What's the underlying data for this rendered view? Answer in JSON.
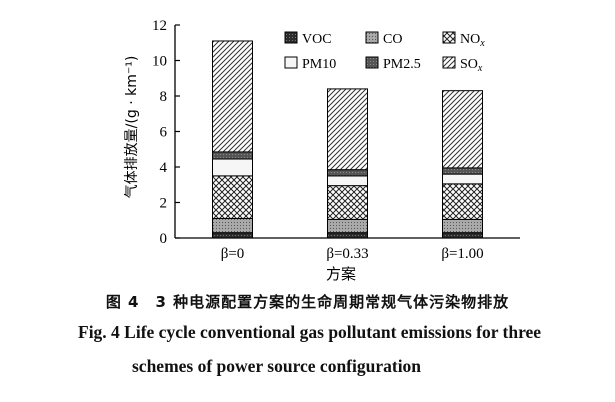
{
  "chart_data": {
    "type": "bar",
    "stacked": true,
    "categories": [
      "β=0",
      "β=0.33",
      "β=1.00"
    ],
    "xlabel": "方案",
    "ylabel": "气体排放量/(g · km⁻¹)",
    "ylim": [
      0,
      12
    ],
    "yticks": [
      0,
      2,
      4,
      6,
      8,
      10,
      12
    ],
    "legend_position": "top-left",
    "series": [
      {
        "name": "VOC",
        "values": [
          0.3,
          0.3,
          0.3
        ],
        "pattern": "dark"
      },
      {
        "name": "CO",
        "values": [
          0.8,
          0.75,
          0.75
        ],
        "pattern": "grey-dots"
      },
      {
        "name": "NOx",
        "values": [
          2.4,
          1.9,
          2.0
        ],
        "pattern": "crosshatch"
      },
      {
        "name": "PM10",
        "values": [
          0.95,
          0.55,
          0.55
        ],
        "pattern": "white"
      },
      {
        "name": "PM2.5",
        "values": [
          0.4,
          0.35,
          0.35
        ],
        "pattern": "dark-grey"
      },
      {
        "name": "SOx",
        "values": [
          6.25,
          4.55,
          4.35
        ],
        "pattern": "diagonal"
      }
    ]
  },
  "caption": {
    "zh": "图 4　3 种电源配置方案的生命周期常规气体污染物排放",
    "en_line1": "Fig. 4    Life cycle conventional gas pollutant emissions for three",
    "en_line2": "schemes of power source configuration"
  }
}
